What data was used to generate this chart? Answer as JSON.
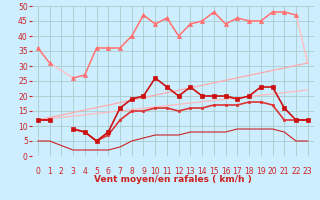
{
  "background_color": "#cceeff",
  "grid_color": "#aacccc",
  "xlabel": "Vent moyen/en rafales ( km/h )",
  "ylim": [
    0,
    50
  ],
  "xlim": [
    -0.5,
    23.5
  ],
  "yticks": [
    0,
    5,
    10,
    15,
    20,
    25,
    30,
    35,
    40,
    45,
    50
  ],
  "xticks": [
    0,
    1,
    2,
    3,
    4,
    5,
    6,
    7,
    8,
    9,
    10,
    11,
    12,
    13,
    14,
    15,
    16,
    17,
    18,
    19,
    20,
    21,
    22,
    23
  ],
  "tick_color": "#cc2222",
  "xlabel_color": "#cc2222",
  "xlabel_fontsize": 6.5,
  "tick_fontsize": 5.5,
  "series": [
    {
      "name": "rafales_upper_light",
      "x": [
        0,
        1,
        3,
        4,
        5,
        6,
        7,
        8,
        9,
        10,
        11,
        12,
        13,
        14,
        15,
        16,
        17,
        18,
        19,
        20,
        21,
        22,
        23
      ],
      "y": [
        36,
        31,
        26,
        27,
        36,
        36,
        36,
        40,
        47,
        44,
        46,
        40,
        44,
        45,
        48,
        44,
        46,
        45,
        45,
        48,
        48,
        47,
        31
      ],
      "color": "#ffb0b0",
      "lw": 0.8,
      "marker": null,
      "ms": 0,
      "zorder": 2
    },
    {
      "name": "rafales_upper_lighter",
      "x": [
        0,
        1,
        3,
        4,
        5,
        6,
        7,
        8,
        9,
        10,
        11,
        12,
        13,
        14,
        15,
        16,
        17,
        18,
        19,
        20,
        21,
        22,
        23
      ],
      "y": [
        36,
        31,
        26,
        27,
        36,
        36,
        36,
        40,
        47,
        44,
        46,
        40,
        44,
        45,
        48,
        44,
        46,
        45,
        45,
        48,
        48,
        47,
        31
      ],
      "color": "#ffc8c8",
      "lw": 0.8,
      "marker": null,
      "ms": 0,
      "zorder": 2
    },
    {
      "name": "rafales_diamond_seg1",
      "x": [
        0,
        1
      ],
      "y": [
        36,
        31
      ],
      "color": "#ff7070",
      "lw": 1.0,
      "marker": "^",
      "ms": 3,
      "zorder": 4
    },
    {
      "name": "rafales_diamond_seg2",
      "x": [
        3,
        4,
        5,
        6,
        7,
        8,
        9,
        10,
        11,
        12,
        13,
        14,
        15,
        16,
        17,
        18,
        19,
        20,
        21,
        22
      ],
      "y": [
        26,
        27,
        36,
        36,
        36,
        40,
        47,
        44,
        46,
        40,
        44,
        45,
        48,
        44,
        46,
        45,
        45,
        48,
        48,
        47
      ],
      "color": "#ff7070",
      "lw": 1.0,
      "marker": "^",
      "ms": 3,
      "zorder": 4
    },
    {
      "name": "diagonal_light",
      "x": [
        0,
        23
      ],
      "y": [
        12,
        31
      ],
      "color": "#ffaaaa",
      "lw": 0.9,
      "marker": null,
      "ms": 0,
      "zorder": 2
    },
    {
      "name": "diagonal_light2",
      "x": [
        0,
        23
      ],
      "y": [
        12,
        22
      ],
      "color": "#ffbbbb",
      "lw": 0.9,
      "marker": null,
      "ms": 0,
      "zorder": 2
    },
    {
      "name": "mean_wind_square_seg1",
      "x": [
        0,
        1
      ],
      "y": [
        12,
        12
      ],
      "color": "#cc1111",
      "lw": 1.2,
      "marker": "s",
      "ms": 2.5,
      "zorder": 5
    },
    {
      "name": "mean_wind_square_seg2",
      "x": [
        3,
        4,
        5,
        6,
        7,
        8,
        9,
        10,
        11,
        12,
        13,
        14,
        15,
        16,
        17,
        18,
        19,
        20,
        21,
        22,
        23
      ],
      "y": [
        9,
        8,
        5,
        8,
        16,
        19,
        20,
        26,
        23,
        20,
        23,
        20,
        20,
        20,
        19,
        20,
        23,
        23,
        16,
        12,
        12
      ],
      "color": "#cc1111",
      "lw": 1.2,
      "marker": "s",
      "ms": 2.5,
      "zorder": 5
    },
    {
      "name": "mean_wind_lower_seg1",
      "x": [
        0,
        1
      ],
      "y": [
        12,
        12
      ],
      "color": "#dd3333",
      "lw": 1.2,
      "marker": "s",
      "ms": 2,
      "zorder": 4
    },
    {
      "name": "mean_wind_lower_seg2",
      "x": [
        3,
        4,
        5,
        6,
        7,
        8,
        9,
        10,
        11,
        12,
        13,
        14,
        15,
        16,
        17,
        18,
        19,
        20,
        21,
        22,
        23
      ],
      "y": [
        9,
        8,
        5,
        7,
        12,
        15,
        15,
        16,
        16,
        15,
        16,
        16,
        17,
        17,
        17,
        18,
        18,
        17,
        12,
        12,
        12
      ],
      "color": "#dd3333",
      "lw": 1.2,
      "marker": "s",
      "ms": 2,
      "zorder": 4
    },
    {
      "name": "bottom_line",
      "x": [
        0,
        1,
        3,
        4,
        5,
        6,
        7,
        8,
        9,
        10,
        11,
        12,
        13,
        14,
        15,
        16,
        17,
        18,
        19,
        20,
        21,
        22,
        23
      ],
      "y": [
        5,
        5,
        2,
        2,
        2,
        2,
        3,
        5,
        6,
        7,
        7,
        7,
        8,
        8,
        8,
        8,
        9,
        9,
        9,
        9,
        8,
        5,
        5
      ],
      "color": "#cc2222",
      "lw": 0.8,
      "marker": null,
      "ms": 0,
      "zorder": 3
    }
  ]
}
